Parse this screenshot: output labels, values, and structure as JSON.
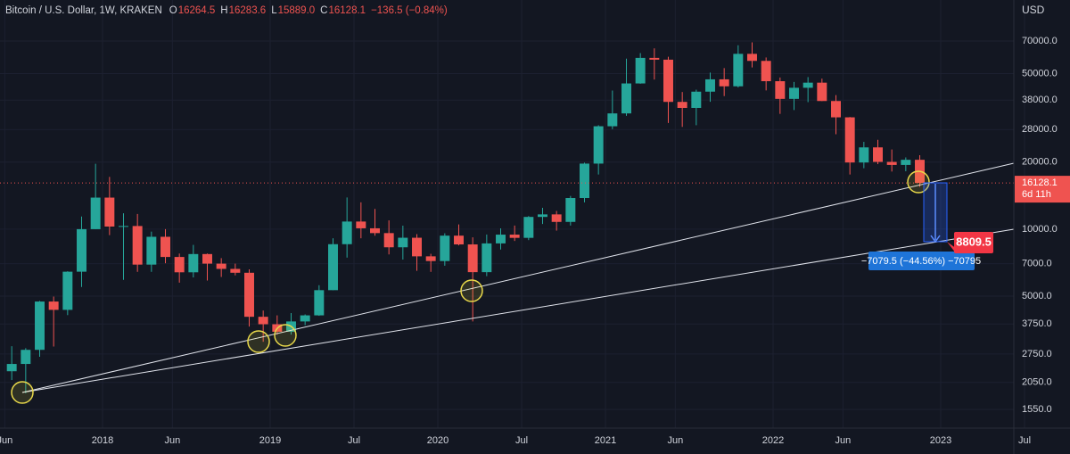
{
  "chart_data": {
    "type": "candlestick",
    "title": "Bitcoin / U.S. Dollar, 1W, KRAKEN",
    "ohlc_legend": [
      {
        "key": "O",
        "value": "16264.5"
      },
      {
        "key": "H",
        "value": "16283.6"
      },
      {
        "key": "L",
        "value": "15889.0"
      },
      {
        "key": "C",
        "value": "16128.1"
      }
    ],
    "change": "−136.5 (−0.84%)",
    "currency": "USD",
    "log_scale": true,
    "up_color": "#26a69a",
    "down_color": "#ef5350",
    "x": [
      "2017-06",
      "2017-07",
      "2017-08",
      "2017-09",
      "2017-10",
      "2017-11",
      "2017-12",
      "2018-01",
      "2018-02",
      "2018-03",
      "2018-04",
      "2018-05",
      "2018-06",
      "2018-07",
      "2018-08",
      "2018-09",
      "2018-10",
      "2018-11",
      "2018-12",
      "2019-01",
      "2019-02",
      "2019-03",
      "2019-04",
      "2019-05",
      "2019-06",
      "2019-07",
      "2019-08",
      "2019-09",
      "2019-10",
      "2019-11",
      "2019-12",
      "2020-01",
      "2020-02",
      "2020-03",
      "2020-04",
      "2020-05",
      "2020-06",
      "2020-07",
      "2020-08",
      "2020-09",
      "2020-10",
      "2020-11",
      "2020-12",
      "2021-01",
      "2021-02",
      "2021-03",
      "2021-04",
      "2021-05",
      "2021-06",
      "2021-07",
      "2021-08",
      "2021-09",
      "2021-10",
      "2021-11",
      "2021-12",
      "2022-01",
      "2022-02",
      "2022-03",
      "2022-04",
      "2022-05",
      "2022-06",
      "2022-07",
      "2022-08",
      "2022-09",
      "2022-10",
      "2022-11"
    ],
    "open": [
      2300,
      2480,
      2870,
      4730,
      4340,
      6440,
      10000,
      13860,
      10270,
      10330,
      6930,
      9240,
      7500,
      6400,
      7730,
      7000,
      6630,
      6370,
      4040,
      3740,
      3460,
      3850,
      4100,
      5320,
      8560,
      10820,
      10090,
      9600,
      8290,
      9150,
      7550,
      7190,
      9350,
      8540,
      6410,
      8630,
      9450,
      9140,
      11350,
      11650,
      10780,
      13800,
      19700,
      28990,
      33110,
      45140,
      58800,
      57720,
      37300,
      35040,
      41460,
      47100,
      43820,
      61300,
      57000,
      46200,
      38480,
      43160,
      45510,
      37640,
      31790,
      19930,
      23300,
      20050,
      19430,
      20490
    ],
    "high": [
      2980,
      2920,
      4760,
      4980,
      6470,
      11400,
      19666,
      17170,
      11790,
      11700,
      9750,
      10000,
      7770,
      8500,
      7770,
      7410,
      7000,
      6600,
      4310,
      4100,
      4200,
      4140,
      5600,
      9100,
      13880,
      13200,
      12330,
      10950,
      10370,
      9500,
      7750,
      9580,
      10500,
      9190,
      9460,
      10080,
      10380,
      11450,
      12470,
      12070,
      14100,
      19900,
      29300,
      41950,
      58350,
      61790,
      64900,
      59500,
      41300,
      42320,
      50500,
      52900,
      67000,
      69000,
      59050,
      48000,
      45850,
      48200,
      47450,
      40000,
      31900,
      24670,
      25200,
      22800,
      21000,
      21480
    ],
    "low": [
      2100,
      1830,
      2670,
      2970,
      4110,
      5500,
      10000,
      9400,
      5920,
      6430,
      6430,
      7030,
      5750,
      6070,
      5880,
      6100,
      6200,
      3650,
      3120,
      3360,
      3360,
      3700,
      4080,
      5320,
      7450,
      9100,
      9350,
      7700,
      7300,
      6500,
      6430,
      6850,
      8450,
      3850,
      6150,
      8100,
      8850,
      8930,
      10550,
      9850,
      10380,
      13200,
      17600,
      28130,
      32300,
      45000,
      47000,
      30000,
      28800,
      29300,
      37330,
      39600,
      43300,
      53250,
      42000,
      32950,
      34300,
      37200,
      37600,
      26700,
      17600,
      18780,
      19600,
      18150,
      18200,
      15480
    ],
    "close": [
      2480,
      2870,
      4730,
      4340,
      6440,
      10000,
      13860,
      10270,
      10330,
      6930,
      9240,
      7500,
      6400,
      7730,
      7000,
      6630,
      6370,
      4040,
      3740,
      3460,
      3850,
      4100,
      5320,
      8560,
      10820,
      10090,
      9600,
      8290,
      9150,
      7550,
      7190,
      9350,
      8540,
      6410,
      8630,
      9450,
      9140,
      11350,
      11650,
      10780,
      13800,
      19700,
      28990,
      33110,
      45140,
      58800,
      57720,
      37300,
      35040,
      41460,
      47100,
      43820,
      61300,
      57000,
      46200,
      38480,
      43160,
      45510,
      37640,
      31790,
      19930,
      23300,
      20050,
      19430,
      20490,
      16128.1
    ],
    "ylim": [
      1277,
      107000
    ],
    "yticks": [
      {
        "value": 70000,
        "label": "70000.0"
      },
      {
        "value": 50000,
        "label": "50000.0"
      },
      {
        "value": 38000,
        "label": "38000.0"
      },
      {
        "value": 28000,
        "label": "28000.0"
      },
      {
        "value": 20000,
        "label": "20000.0"
      },
      {
        "value": 10000,
        "label": "10000.0"
      },
      {
        "value": 7000,
        "label": "7000.0"
      },
      {
        "value": 5000,
        "label": "5000.0"
      },
      {
        "value": 3750,
        "label": "3750.0"
      },
      {
        "value": 2750,
        "label": "2750.0"
      },
      {
        "value": 2050,
        "label": "2050.0"
      },
      {
        "value": 1550,
        "label": "1550.0"
      }
    ],
    "xticks": [
      {
        "value": "2017-06",
        "label": "Jun"
      },
      {
        "value": "2018-01",
        "label": "2018"
      },
      {
        "value": "2018-06",
        "label": "Jun"
      },
      {
        "value": "2019-01",
        "label": "2019"
      },
      {
        "value": "2019-07",
        "label": "Jul"
      },
      {
        "value": "2020-01",
        "label": "2020"
      },
      {
        "value": "2020-07",
        "label": "Jul"
      },
      {
        "value": "2021-01",
        "label": "2021"
      },
      {
        "value": "2021-06",
        "label": "Jun"
      },
      {
        "value": "2022-01",
        "label": "2022"
      },
      {
        "value": "2022-06",
        "label": "Jun"
      },
      {
        "value": "2023-01",
        "label": "2023"
      },
      {
        "value": "2023-07",
        "label": "Jul"
      }
    ],
    "last_price": {
      "value": 16128.1,
      "countdown": "6d 11h"
    },
    "annotations": {
      "target": "8809.5",
      "measure": "−7079.5 (−44.56%) −70795"
    }
  }
}
